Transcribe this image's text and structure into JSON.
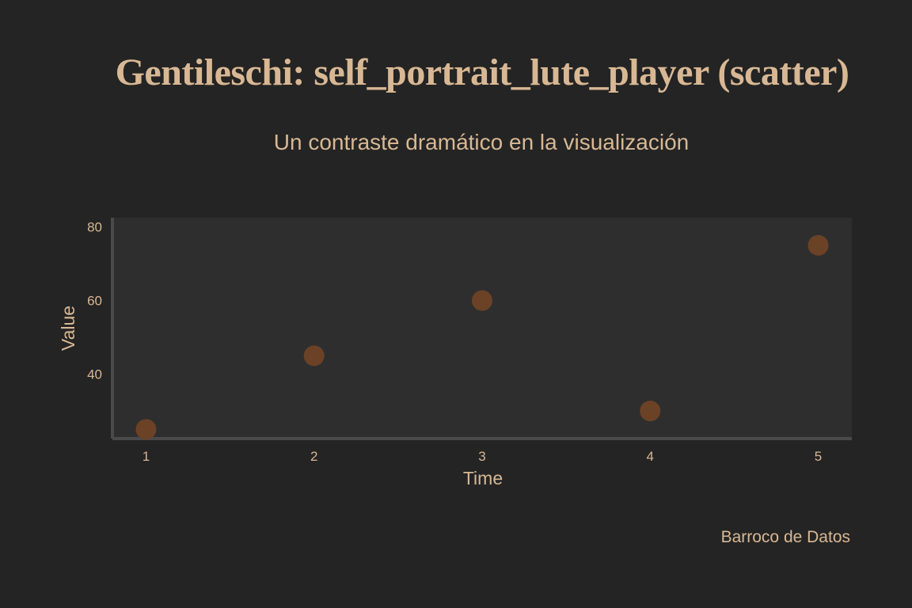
{
  "title": "Gentileschi: self_portrait_lute_player (scatter)",
  "subtitle": "Un contraste dramático en la visualización",
  "caption": "Barroco de Datos",
  "colors": {
    "background": "#242424",
    "panel": "#2e2e2e",
    "text": "#d8b894",
    "axis_line": "#4a4a4a",
    "point": "#6b4226"
  },
  "chart_data": {
    "type": "scatter",
    "title": "Gentileschi: self_portrait_lute_player (scatter)",
    "subtitle": "Un contraste dramático en la visualización",
    "xlabel": "Time",
    "ylabel": "Value",
    "x": [
      1,
      2,
      3,
      4,
      5
    ],
    "y": [
      25,
      45,
      60,
      30,
      75
    ],
    "x_ticks": [
      1,
      2,
      3,
      4,
      5
    ],
    "y_ticks": [
      40,
      60,
      80
    ],
    "xlim": [
      0.8,
      5.2
    ],
    "ylim": [
      22.5,
      82.5
    ],
    "grid": false,
    "legend": "none"
  }
}
